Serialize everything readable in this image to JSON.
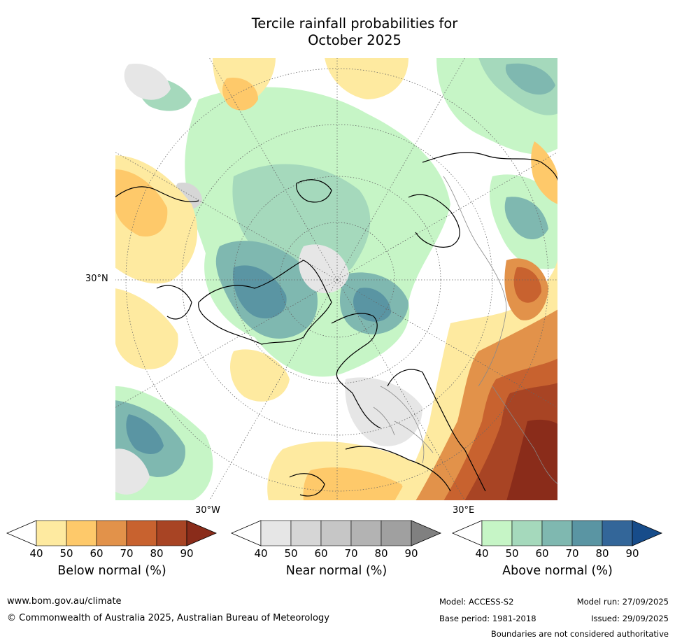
{
  "title_line1": "Tercile rainfall probabilities for",
  "title_line2": "October 2025",
  "map": {
    "lat_label": "30°N",
    "lon_label_w": "30°W",
    "lon_label_e": "30°E"
  },
  "colorbars": [
    {
      "name": "Below normal (%)",
      "ticks": [
        "40",
        "50",
        "60",
        "70",
        "80",
        "90"
      ],
      "colors": [
        "#ffffff",
        "#feeaa0",
        "#fec96a",
        "#e2924a",
        "#c8622f",
        "#a84424",
        "#8a2c1a"
      ]
    },
    {
      "name": "Near normal (%)",
      "ticks": [
        "40",
        "50",
        "60",
        "70",
        "80",
        "90"
      ],
      "colors": [
        "#ffffff",
        "#e6e6e6",
        "#d6d6d6",
        "#c6c6c6",
        "#b3b3b3",
        "#a0a0a0",
        "#808080"
      ]
    },
    {
      "name": "Above normal (%)",
      "ticks": [
        "40",
        "50",
        "60",
        "70",
        "80",
        "90"
      ],
      "colors": [
        "#ffffff",
        "#c6f5c6",
        "#a5d9bc",
        "#7fb8b0",
        "#5a95a3",
        "#336699",
        "#174c8a"
      ]
    }
  ],
  "footer": {
    "url": "www.bom.gov.au/climate",
    "copyright": "© Commonwealth of Australia 2025, Australian Bureau of Meteorology",
    "model": "Model: ACCESS-S2",
    "base_period": "Base period: 1981-2018",
    "model_run": "Model run: 27/09/2025",
    "issued": "Issued: 29/09/2025",
    "disclaimer": "Boundaries are not considered authoritative"
  }
}
